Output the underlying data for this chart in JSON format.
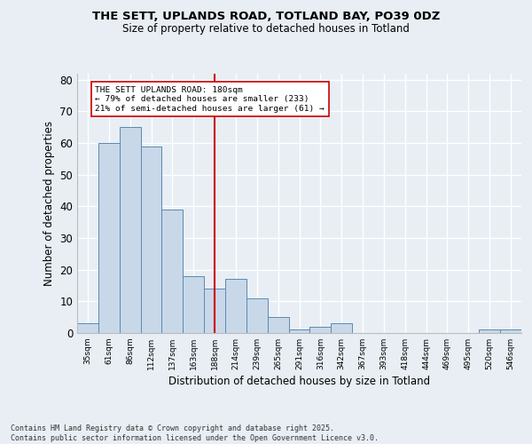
{
  "title1": "THE SETT, UPLANDS ROAD, TOTLAND BAY, PO39 0DZ",
  "title2": "Size of property relative to detached houses in Totland",
  "xlabel": "Distribution of detached houses by size in Totland",
  "ylabel": "Number of detached properties",
  "categories": [
    "35sqm",
    "61sqm",
    "86sqm",
    "112sqm",
    "137sqm",
    "163sqm",
    "188sqm",
    "214sqm",
    "239sqm",
    "265sqm",
    "291sqm",
    "316sqm",
    "342sqm",
    "367sqm",
    "393sqm",
    "418sqm",
    "444sqm",
    "469sqm",
    "495sqm",
    "520sqm",
    "546sqm"
  ],
  "values": [
    3,
    60,
    65,
    59,
    39,
    18,
    14,
    17,
    11,
    5,
    1,
    2,
    3,
    0,
    0,
    0,
    0,
    0,
    0,
    1,
    1
  ],
  "bar_color": "#c8d8e8",
  "bar_edge_color": "#5a8ab0",
  "vline_x": 6,
  "vline_color": "#cc0000",
  "annotation_text": "THE SETT UPLANDS ROAD: 180sqm\n← 79% of detached houses are smaller (233)\n21% of semi-detached houses are larger (61) →",
  "annotation_box_color": "#ffffff",
  "annotation_box_edge_color": "#cc0000",
  "ylim": [
    0,
    82
  ],
  "yticks": [
    0,
    10,
    20,
    30,
    40,
    50,
    60,
    70,
    80
  ],
  "background_color": "#e8eef4",
  "grid_color": "#ffffff",
  "footer": "Contains HM Land Registry data © Crown copyright and database right 2025.\nContains public sector information licensed under the Open Government Licence v3.0."
}
